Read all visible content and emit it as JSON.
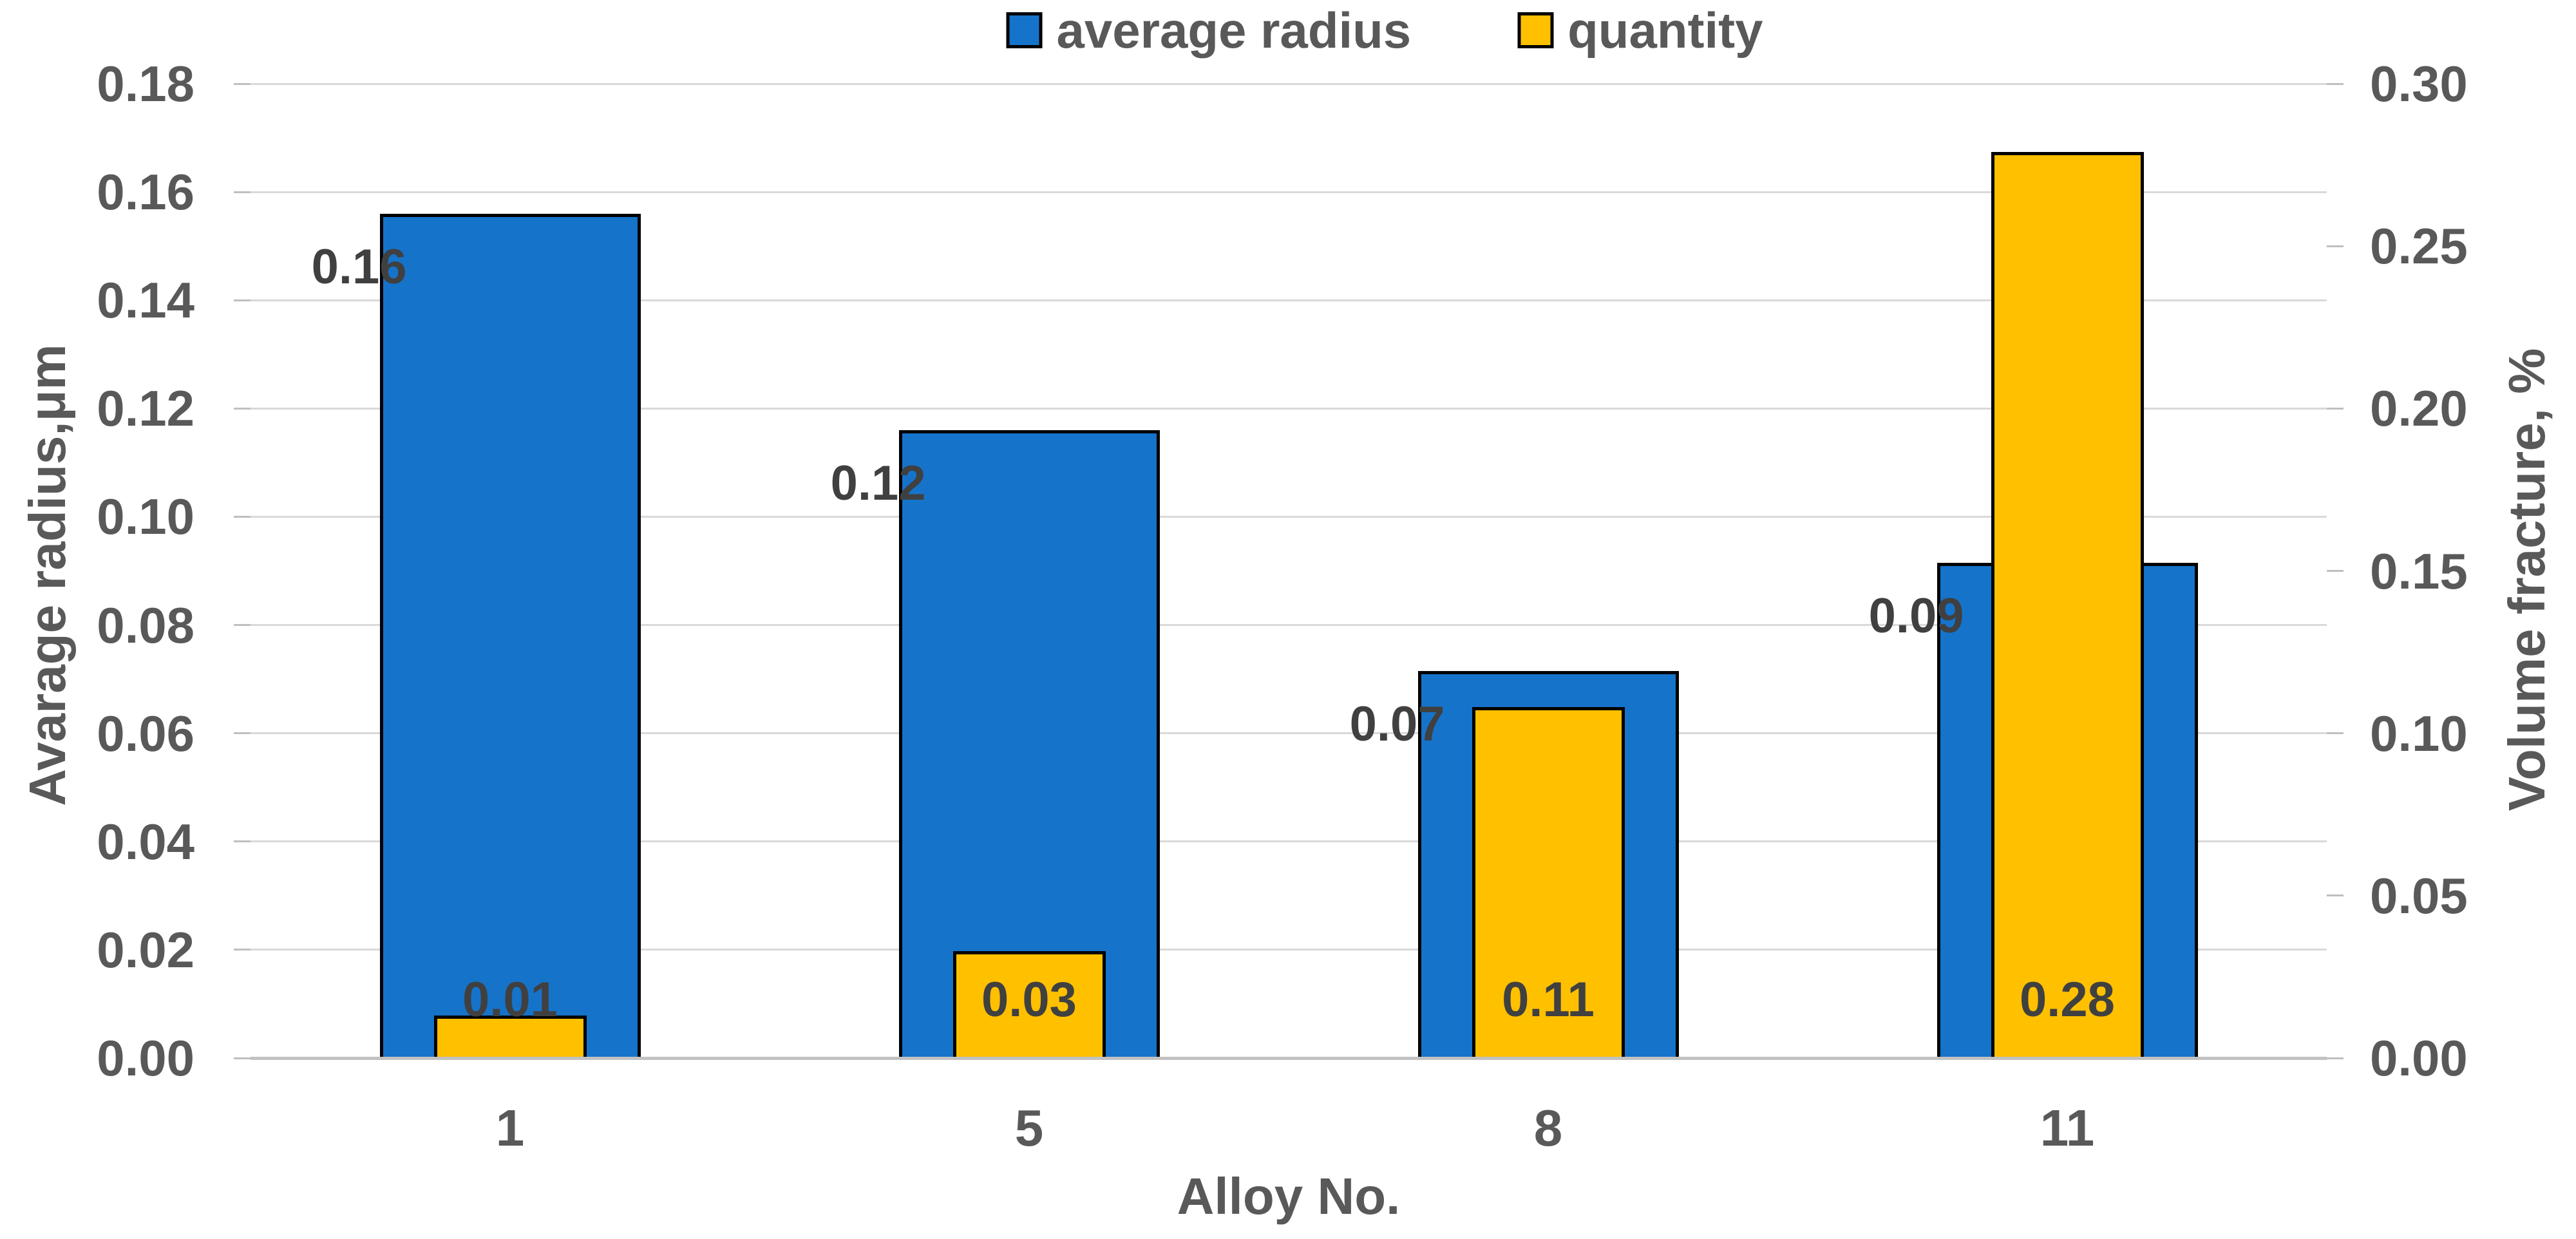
{
  "page": {
    "background_color": "#FFFFFF",
    "text_color_ticks": "#595959",
    "text_color_datalabels": "#404040",
    "gridline_color": "#D9D9D9"
  },
  "chart_data": {
    "type": "bar",
    "title": "",
    "categories": [
      "1",
      "5",
      "8",
      "11"
    ],
    "series": [
      {
        "name": "average radius",
        "axis": "left",
        "color": "#1673CA",
        "border_color": "#000000",
        "values": [
          0.16,
          0.12,
          0.07,
          0.09
        ],
        "values_precise": [
          0.156,
          0.116,
          0.0715,
          0.0915
        ],
        "labels": [
          "0.16",
          "0.12",
          "0.07",
          "0.09"
        ]
      },
      {
        "name": "quantity",
        "axis": "right",
        "color": "#FFC000",
        "border_color": "#000000",
        "values": [
          0.01,
          0.03,
          0.11,
          0.28
        ],
        "values_precise": [
          0.013,
          0.033,
          0.108,
          0.279
        ],
        "labels": [
          "0.01",
          "0.03",
          "0.11",
          "0.28"
        ]
      }
    ],
    "left_axis": {
      "title": "Avarage radius,μm",
      "min": 0.0,
      "max": 0.18,
      "tick_labels": [
        "0.18",
        "0.16",
        "0.14",
        "0.12",
        "0.10",
        "0.08",
        "0.06",
        "0.04",
        "0.02",
        "0.00"
      ],
      "tick_values": [
        0.18,
        0.16,
        0.14,
        0.12,
        0.1,
        0.08,
        0.06,
        0.04,
        0.02,
        0.0
      ]
    },
    "right_axis": {
      "title": "Volume fracture, %",
      "min": 0.0,
      "max": 0.3,
      "tick_labels": [
        "0.30",
        "0.25",
        "0.20",
        "0.15",
        "0.10",
        "0.05",
        "0.00"
      ],
      "tick_values": [
        0.3,
        0.25,
        0.2,
        0.15,
        0.1,
        0.05,
        0.0
      ]
    },
    "x_axis": {
      "title": "Alloy No."
    },
    "legend_position": "top",
    "grid": true
  }
}
